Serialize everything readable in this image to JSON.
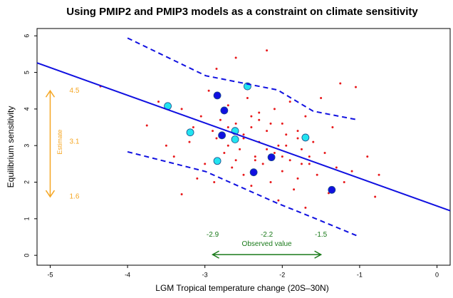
{
  "chart_data": {
    "type": "scatter",
    "title": "Using PMIP2 and PMIP3 models as a constraint on climate sensitivity",
    "x_label": "LGM Tropical temperature change (20S–30N)",
    "y_label": "Equilibrium sensitivity",
    "xlim": [
      -5.17,
      0.17
    ],
    "ylim": [
      -0.27,
      6.2
    ],
    "xticks": [
      -5,
      -4,
      -3,
      -2,
      -1,
      0
    ],
    "yticks": [
      0,
      1,
      2,
      3,
      4,
      5,
      6
    ],
    "series": [
      {
        "mark": "dot",
        "color": "#e8191b",
        "x": [
          -4.35,
          -3.75,
          -3.6,
          -3.5,
          -3.4,
          -3.3,
          -3.3,
          -3.2,
          -3.1,
          -3.05,
          -3.0,
          -2.95,
          -2.9,
          -2.88,
          -2.85,
          -2.8,
          -2.75,
          -2.7,
          -2.7,
          -2.65,
          -2.6,
          -2.6,
          -2.55,
          -2.5,
          -2.5,
          -2.45,
          -2.4,
          -2.4,
          -2.35,
          -2.3,
          -2.3,
          -2.25,
          -2.2,
          -2.2,
          -2.15,
          -2.1,
          -2.1,
          -2.05,
          -2.0,
          -2.0,
          -1.95,
          -1.9,
          -1.9,
          -1.85,
          -1.8,
          -1.8,
          -1.75,
          -1.7,
          -1.7,
          -1.65,
          -1.6,
          -1.55,
          -1.5,
          -1.45,
          -1.4,
          -1.35,
          -1.3,
          -1.25,
          -1.2,
          -1.1,
          -1.05,
          -0.9,
          -0.8,
          -0.75,
          -2.5,
          -2.3,
          -2.0,
          -1.8,
          -2.7,
          -2.4,
          -2.2,
          -1.95,
          -2.6,
          -2.15,
          -1.65,
          -3.15,
          -2.05,
          -2.35,
          -1.75,
          -2.85
        ],
        "y": [
          4.62,
          3.55,
          4.2,
          3.0,
          2.7,
          4.0,
          1.67,
          3.1,
          2.1,
          3.8,
          2.5,
          4.5,
          3.4,
          2.0,
          5.1,
          3.7,
          2.8,
          4.1,
          3.0,
          2.4,
          5.4,
          3.6,
          2.9,
          3.3,
          2.2,
          4.3,
          3.5,
          1.9,
          2.7,
          3.9,
          3.1,
          2.5,
          5.6,
          3.4,
          2.0,
          4.0,
          2.8,
          1.5,
          3.6,
          2.3,
          3.0,
          4.2,
          2.6,
          1.8,
          3.4,
          2.1,
          2.9,
          3.8,
          1.3,
          2.5,
          3.1,
          2.2,
          4.3,
          2.8,
          1.7,
          3.5,
          2.4,
          4.7,
          2.0,
          2.3,
          4.6,
          2.7,
          1.6,
          2.2,
          3.2,
          3.7,
          2.7,
          3.2,
          3.5,
          3.8,
          2.9,
          3.3,
          2.6,
          3.6,
          2.7,
          3.5,
          3.0,
          2.6,
          2.5,
          3.2
        ]
      },
      {
        "mark": "dot-large",
        "color": "#1010e0",
        "x": [
          -2.84,
          -2.75,
          -2.78,
          -2.14,
          -2.37,
          -1.36
        ],
        "y": [
          4.37,
          3.96,
          3.28,
          2.68,
          2.27,
          1.79
        ]
      },
      {
        "mark": "dot-large",
        "color": "#22e4f0",
        "x": [
          -3.48,
          -3.19,
          -2.45,
          -2.61,
          -2.61,
          -2.84,
          -1.7
        ],
        "y": [
          4.08,
          3.36,
          4.62,
          3.4,
          3.17,
          2.58,
          3.22
        ]
      },
      {
        "mark": "line",
        "color": "#1010e0",
        "x": [
          -5.17,
          0.17
        ],
        "y": [
          5.26,
          1.22
        ]
      },
      {
        "mark": "dashed",
        "color": "#1010e0",
        "x": [
          -4.0,
          -2.99,
          -2.06,
          -1.6,
          -1.04
        ],
        "y": [
          5.94,
          4.91,
          4.52,
          3.94,
          3.71
        ]
      },
      {
        "mark": "dashed",
        "color": "#1010e0",
        "x": [
          -4.0,
          -2.99,
          -2.06,
          -1.6,
          -1.04
        ],
        "y": [
          2.83,
          2.29,
          1.42,
          1.03,
          0.54
        ]
      }
    ],
    "estimate": {
      "label": "Estimate",
      "color": "#f5a623",
      "x": -5,
      "low": 1.6,
      "mid": 3.1,
      "high": 4.5
    },
    "observed": {
      "label": "Observed value",
      "color": "#1a7a1a",
      "y": 0.02,
      "low": -2.9,
      "mid": -2.2,
      "high": -1.5
    }
  }
}
